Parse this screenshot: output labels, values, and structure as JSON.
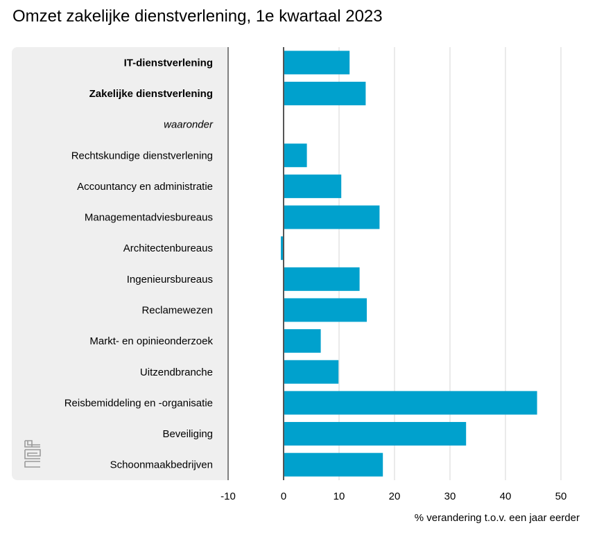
{
  "title": "Omzet zakelijke dienstverlening, 1e kwartaal 2023",
  "logo_text": "cbs",
  "colors": {
    "bar": "#00a1cd",
    "grid": "#d6d6d6",
    "axis": "#555555",
    "panel": "#efefef"
  },
  "chart_data": {
    "type": "bar",
    "orientation": "horizontal",
    "title": "Omzet zakelijke dienstverlening, 1e kwartaal 2023",
    "xlabel": "% verandering t.o.v. een jaar eerder",
    "ylabel": "",
    "xlim": [
      -10,
      52
    ],
    "xticks": [
      -10,
      0,
      10,
      20,
      30,
      40,
      50
    ],
    "grid": true,
    "categories": [
      "IT-dienstverlening",
      "Zakelijke dienstverlening",
      "waaronder",
      "Rechtskundige dienstverlening",
      "Accountancy en administratie",
      "Managementadviesbureaus",
      "Architectenbureaus",
      "Ingenieursbureaus",
      "Reclamewezen",
      "Markt- en opinieonderzoek",
      "Uitzendbranche",
      "Reisbemiddeling en -organisatie",
      "Beveiliging",
      "Schoonmaakbedrijven"
    ],
    "category_styles": [
      "bold",
      "bold",
      "italic",
      "normal",
      "normal",
      "normal",
      "normal",
      "normal",
      "normal",
      "normal",
      "normal",
      "normal",
      "normal",
      "normal"
    ],
    "values": [
      11.9,
      14.8,
      null,
      4.2,
      10.4,
      17.3,
      -0.5,
      13.7,
      15.0,
      6.7,
      9.9,
      45.7,
      32.9,
      17.9
    ]
  }
}
